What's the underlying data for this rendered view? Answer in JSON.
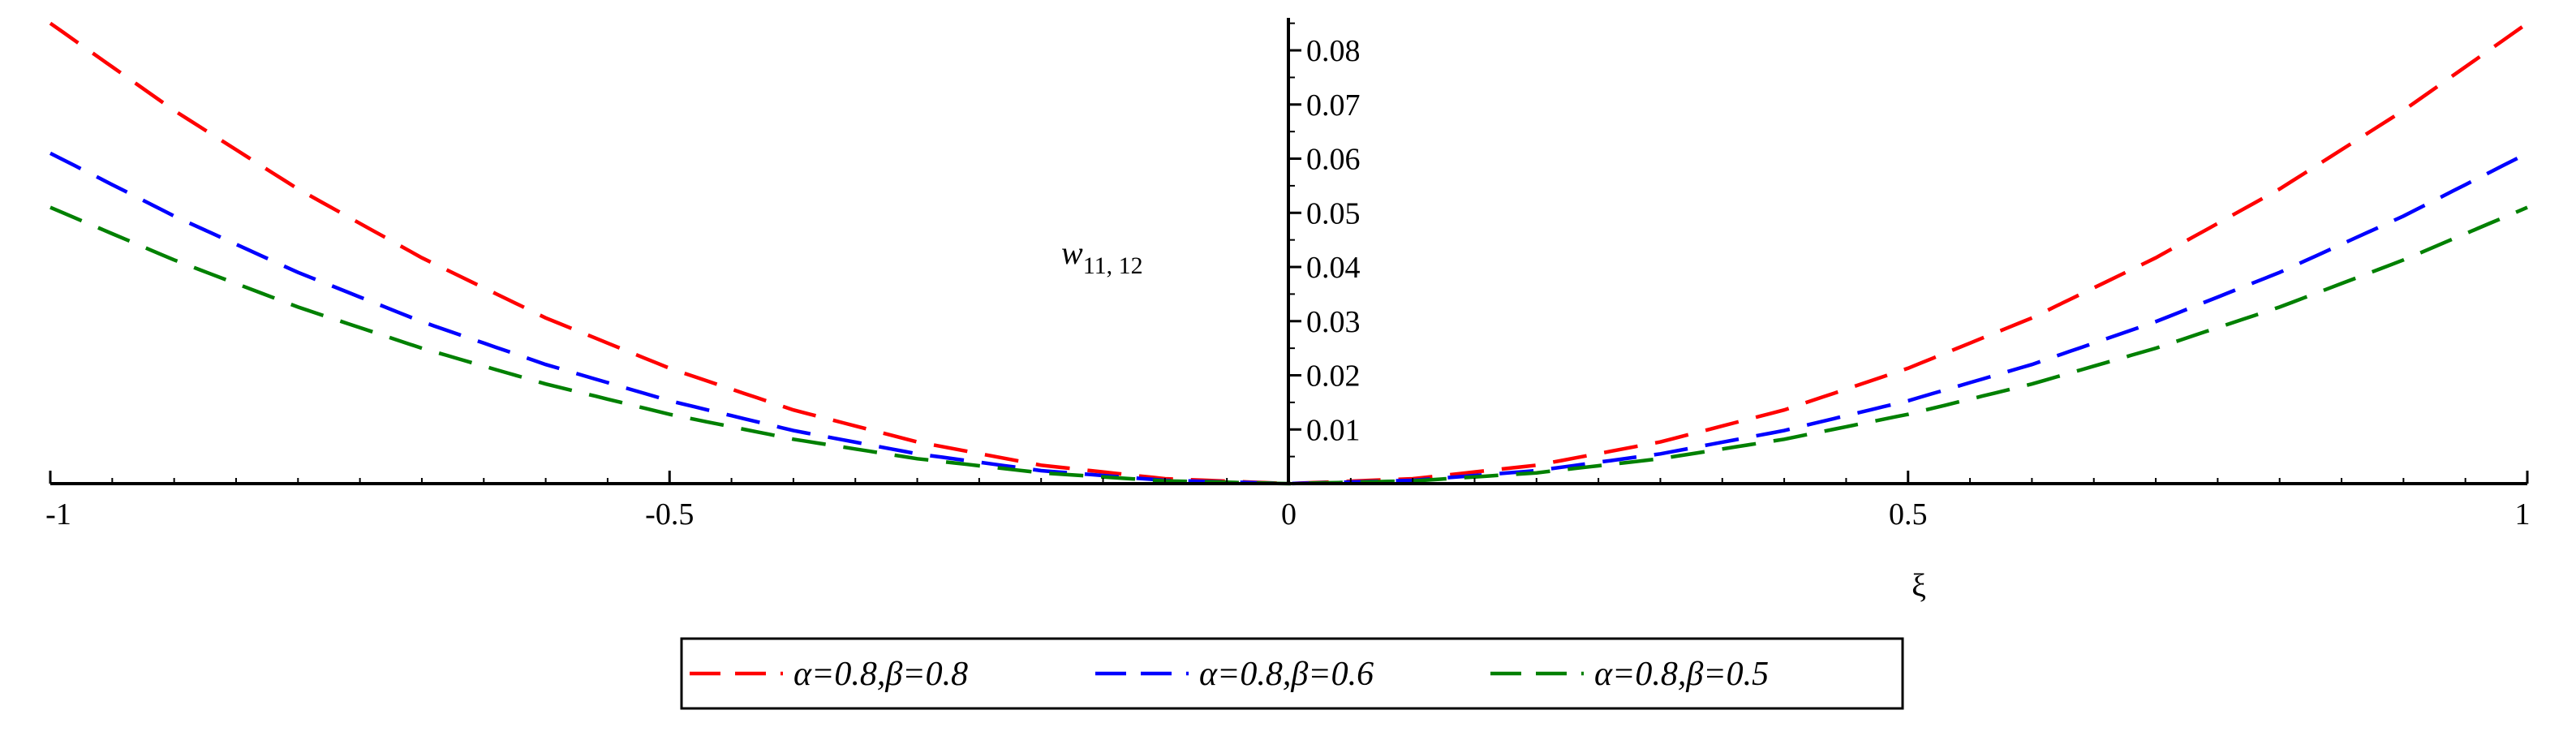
{
  "chart_data": {
    "type": "line",
    "xlabel": "ξ",
    "ylabel_main": "w",
    "ylabel_sub": "11, 12",
    "xlim": [
      -1,
      1
    ],
    "ylim": [
      0,
      0.086
    ],
    "x_ticks": [
      -1,
      -0.5,
      0,
      0.5,
      1
    ],
    "x_tick_labels": [
      "-1",
      "-0.5",
      "0",
      "0.5",
      "1"
    ],
    "y_ticks": [
      0.01,
      0.02,
      0.03,
      0.04,
      0.05,
      0.06,
      0.07,
      0.08
    ],
    "y_tick_labels": [
      "0.01",
      "0.02",
      "0.03",
      "0.04",
      "0.05",
      "0.06",
      "0.07",
      "0.08"
    ],
    "grid": false,
    "legend_position": "bottom-center",
    "x": [
      -1,
      -0.9,
      -0.8,
      -0.7,
      -0.6,
      -0.5,
      -0.4,
      -0.3,
      -0.2,
      -0.1,
      0,
      0.1,
      0.2,
      0.3,
      0.4,
      0.5,
      0.6,
      0.7,
      0.8,
      0.9,
      1
    ],
    "series": [
      {
        "name": "α=0.8,β=0.8",
        "color": "#ff0000",
        "values": [
          0.085,
          0.0689,
          0.0544,
          0.0417,
          0.0306,
          0.0213,
          0.0136,
          0.0077,
          0.0034,
          0.0009,
          0,
          0.0009,
          0.0034,
          0.0077,
          0.0136,
          0.0213,
          0.0306,
          0.0417,
          0.0544,
          0.0689,
          0.085
        ]
      },
      {
        "name": "α=0.8,β=0.6",
        "color": "#0000ff",
        "values": [
          0.061,
          0.0494,
          0.039,
          0.0299,
          0.022,
          0.0153,
          0.0098,
          0.0055,
          0.0024,
          0.0006,
          0,
          0.0006,
          0.0024,
          0.0055,
          0.0098,
          0.0153,
          0.022,
          0.0299,
          0.039,
          0.0494,
          0.061
        ]
      },
      {
        "name": "α=0.8,β=0.5",
        "color": "#008000",
        "values": [
          0.051,
          0.0413,
          0.0326,
          0.025,
          0.0184,
          0.0128,
          0.0082,
          0.0046,
          0.002,
          0.0005,
          0,
          0.0005,
          0.002,
          0.0046,
          0.0082,
          0.0128,
          0.0184,
          0.025,
          0.0326,
          0.0413,
          0.051
        ]
      }
    ]
  }
}
